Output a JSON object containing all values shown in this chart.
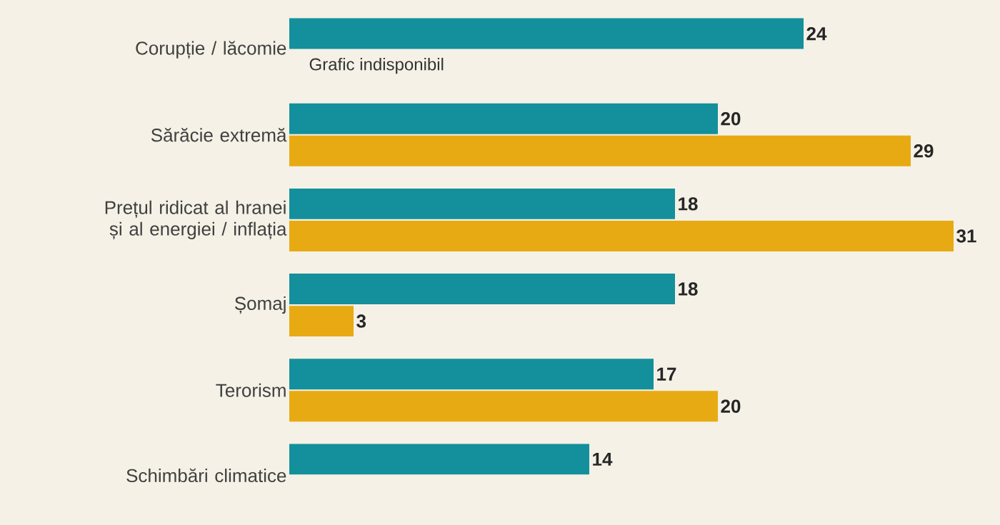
{
  "chart_data": {
    "type": "bar",
    "orientation": "horizontal",
    "categories": [
      "Corupție / lăcomie",
      "Sărăcie extremă",
      "Prețul ridicat al hranei și al energiei / inflația",
      "Șomaj",
      "Terorism",
      "Schimbări climatice"
    ],
    "series": [
      {
        "color": "#13909b",
        "values": [
          24,
          20,
          18,
          18,
          17,
          14
        ]
      },
      {
        "color": "#e8aa12",
        "values": [
          null,
          29,
          31,
          3,
          20,
          null
        ]
      }
    ],
    "tick_labels": "y",
    "data_labels": true,
    "annotations": [
      "Grafic indisponibil"
    ]
  }
}
